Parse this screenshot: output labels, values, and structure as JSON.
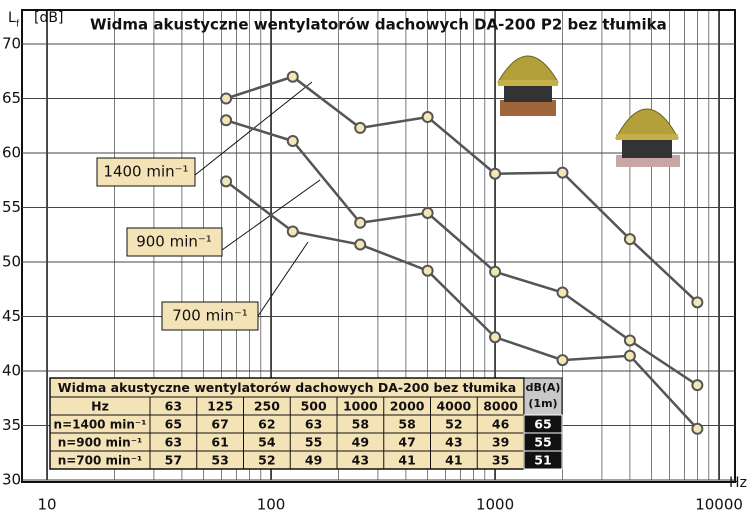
{
  "chart_data": {
    "type": "line",
    "title": "Widma akustyczne wentylatorów dachowych DA-200 P2 bez tłumika",
    "y_label": "L",
    "y_label_sub": "f",
    "y_unit": "[dB]",
    "x_label": "Hz",
    "x_log": true,
    "grid": true,
    "xlim": [
      7.73,
      11780
    ],
    "xticks": [
      10,
      100,
      1000,
      10000
    ],
    "x_minor_ticks": [
      20,
      30,
      40,
      50,
      60,
      70,
      80,
      90,
      200,
      300,
      400,
      500,
      600,
      700,
      800,
      900,
      2000,
      3000,
      4000,
      5000,
      6000,
      7000,
      8000,
      9000
    ],
    "ylim": [
      30,
      70
    ],
    "yticks": [
      30,
      35,
      40,
      45,
      50,
      55,
      60,
      65,
      70
    ],
    "x": [
      63,
      125,
      250,
      500,
      1000,
      2000,
      4000,
      8000
    ],
    "series": [
      {
        "name": "1400 min⁻¹",
        "color": "#555555",
        "values": [
          65,
          67,
          62.3,
          63.3,
          58.1,
          58.2,
          52.1,
          46.3
        ]
      },
      {
        "name": "900 min⁻¹",
        "color": "#555555",
        "values": [
          63,
          61.1,
          53.6,
          54.5,
          49.1,
          47.2,
          42.8,
          38.7
        ]
      },
      {
        "name": "700 min⁻¹",
        "color": "#555555",
        "values": [
          57.4,
          52.8,
          51.6,
          49.2,
          43.1,
          41,
          41.4,
          34.7
        ]
      }
    ],
    "table": {
      "title": "Widma akustyczne wentylatorów dachowych DA-200 bez tłumika",
      "header": [
        "Hz",
        "63",
        "125",
        "250",
        "500",
        "1000",
        "2000",
        "4000",
        "8000"
      ],
      "dba_header": "dB(A) (1m)",
      "rows": [
        {
          "label": "n=1400 min⁻¹",
          "values": [
            65,
            67,
            62,
            63,
            58,
            58,
            52,
            46
          ],
          "dba": 65
        },
        {
          "label": "n=900 min⁻¹",
          "values": [
            63,
            61,
            54,
            55,
            49,
            47,
            43,
            39
          ],
          "dba": 55
        },
        {
          "label": "n=700 min⁻¹",
          "values": [
            57,
            53,
            52,
            49,
            43,
            41,
            41,
            35
          ],
          "dba": 51
        }
      ]
    }
  }
}
